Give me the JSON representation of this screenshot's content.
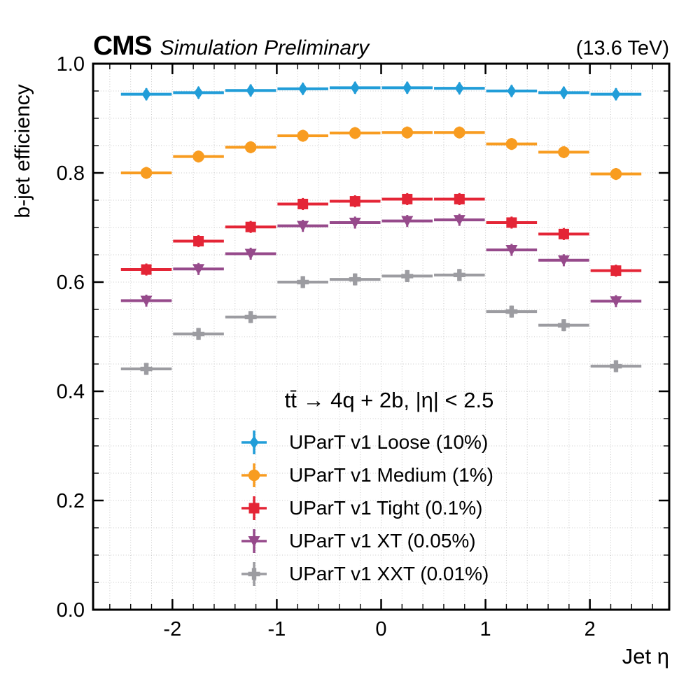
{
  "header": {
    "experiment": "CMS",
    "label": "Simulation Preliminary",
    "energy": "(13.6 TeV)"
  },
  "axes": {
    "xlabel": "Jet η",
    "ylabel": "b-jet efficiency",
    "xlim": [
      -2.76,
      2.76
    ],
    "ylim": [
      0.0,
      1.0
    ],
    "x_major_ticks": [
      -2,
      -1,
      0,
      1,
      2
    ],
    "x_tick_labels": [
      "-2",
      "-1",
      "0",
      "1",
      "2"
    ],
    "y_major_ticks": [
      0.0,
      0.2,
      0.4,
      0.6,
      0.8,
      1.0
    ],
    "y_tick_labels": [
      "0.0",
      "0.2",
      "0.4",
      "0.6",
      "0.8",
      "1.0"
    ],
    "x_minor_step": 0.2,
    "y_minor_step": 0.05,
    "grid": "dotted"
  },
  "legend": {
    "title": "tt̄ → 4q + 2b,  |η| < 2.5"
  },
  "chart_data": {
    "type": "scatter",
    "title": "",
    "xlabel": "Jet η",
    "ylabel": "b-jet efficiency",
    "xlim": [
      -2.76,
      2.76
    ],
    "ylim": [
      0.0,
      1.0
    ],
    "x": [
      -2.25,
      -1.75,
      -1.25,
      -0.75,
      -0.25,
      0.25,
      0.75,
      1.25,
      1.75,
      2.25
    ],
    "bin_half_width": 0.25,
    "yerr_approx": 0.011,
    "legend_position": "lower center",
    "series": [
      {
        "name": "UParT v1 Loose (10%)",
        "marker": "diamond",
        "color": "#219dd8",
        "values": [
          0.944,
          0.947,
          0.951,
          0.954,
          0.956,
          0.956,
          0.955,
          0.95,
          0.947,
          0.944
        ]
      },
      {
        "name": "UParT v1 Medium (1%)",
        "marker": "circle",
        "color": "#f89c20",
        "values": [
          0.8,
          0.83,
          0.847,
          0.868,
          0.873,
          0.874,
          0.874,
          0.853,
          0.838,
          0.798
        ]
      },
      {
        "name": "UParT v1 Tight (0.1%)",
        "marker": "square",
        "color": "#e42536",
        "values": [
          0.623,
          0.675,
          0.701,
          0.743,
          0.748,
          0.752,
          0.752,
          0.709,
          0.688,
          0.621
        ]
      },
      {
        "name": "UParT v1 XT (0.05%)",
        "marker": "triangle-down",
        "color": "#964a8b",
        "values": [
          0.566,
          0.624,
          0.652,
          0.703,
          0.709,
          0.712,
          0.714,
          0.659,
          0.64,
          0.565
        ]
      },
      {
        "name": "UParT v1 XXT (0.01%)",
        "marker": "plus",
        "color": "#9c9ca1",
        "values": [
          0.441,
          0.505,
          0.536,
          0.6,
          0.605,
          0.611,
          0.613,
          0.546,
          0.521,
          0.446
        ]
      }
    ]
  },
  "style": {
    "frame_color": "#000000",
    "grid_color": "#c9c9c9",
    "background": "#ffffff"
  }
}
